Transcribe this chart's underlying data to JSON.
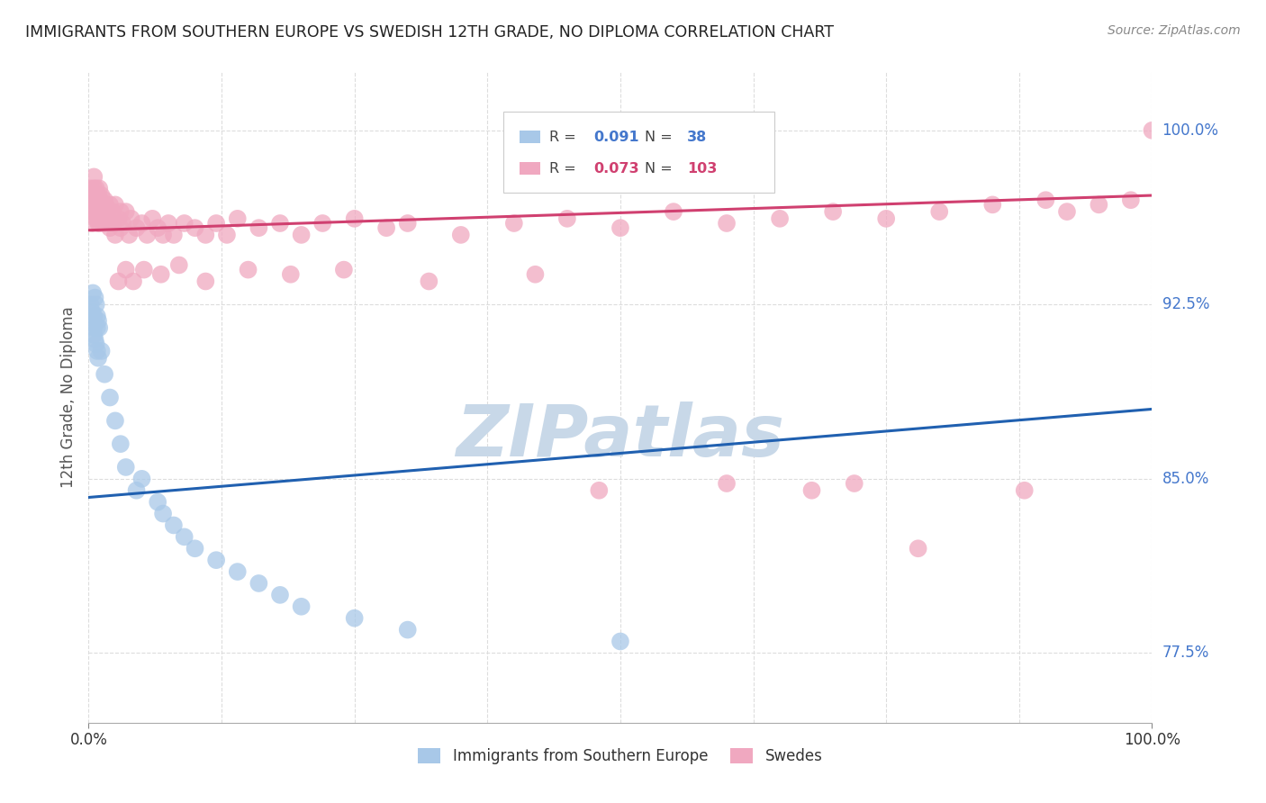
{
  "title": "IMMIGRANTS FROM SOUTHERN EUROPE VS SWEDISH 12TH GRADE, NO DIPLOMA CORRELATION CHART",
  "source": "Source: ZipAtlas.com",
  "ylabel": "12th Grade, No Diploma",
  "right_yticks": [
    77.5,
    85.0,
    92.5,
    100.0
  ],
  "right_ytick_labels": [
    "77.5%",
    "85.0%",
    "92.5%",
    "100.0%"
  ],
  "legend_blue_label": "Immigrants from Southern Europe",
  "legend_pink_label": "Swedes",
  "R_blue": "0.091",
  "N_blue": "38",
  "R_pink": "0.073",
  "N_pink": "103",
  "blue_color": "#a8c8e8",
  "pink_color": "#f0a8c0",
  "trend_blue_color": "#2060b0",
  "trend_pink_color": "#d04070",
  "blue_scatter_x": [
    0.2,
    0.3,
    0.3,
    0.4,
    0.5,
    0.5,
    0.5,
    0.6,
    0.6,
    0.7,
    0.7,
    0.8,
    0.8,
    0.8,
    0.9,
    0.9,
    1.0,
    1.2,
    1.5,
    2.0,
    2.5,
    3.0,
    3.5,
    4.5,
    5.0,
    6.5,
    7.0,
    8.0,
    9.0,
    10.0,
    12.0,
    14.0,
    16.0,
    18.0,
    20.0,
    25.0,
    30.0,
    50.0
  ],
  "blue_scatter_y": [
    92.5,
    91.8,
    92.2,
    93.0,
    91.5,
    92.0,
    91.2,
    92.8,
    91.0,
    90.8,
    92.5,
    91.5,
    90.5,
    92.0,
    91.8,
    90.2,
    91.5,
    90.5,
    89.5,
    88.5,
    87.5,
    86.5,
    85.5,
    84.5,
    85.0,
    84.0,
    83.5,
    83.0,
    82.5,
    82.0,
    81.5,
    81.0,
    80.5,
    80.0,
    79.5,
    79.0,
    78.5,
    78.0
  ],
  "pink_scatter_x": [
    0.2,
    0.2,
    0.3,
    0.3,
    0.4,
    0.4,
    0.5,
    0.5,
    0.5,
    0.5,
    0.5,
    0.6,
    0.6,
    0.6,
    0.7,
    0.7,
    0.7,
    0.8,
    0.8,
    0.9,
    0.9,
    1.0,
    1.0,
    1.0,
    1.1,
    1.1,
    1.2,
    1.2,
    1.3,
    1.4,
    1.5,
    1.5,
    1.6,
    1.7,
    1.8,
    2.0,
    2.0,
    2.2,
    2.3,
    2.5,
    2.5,
    2.8,
    3.0,
    3.0,
    3.2,
    3.5,
    3.8,
    4.0,
    4.5,
    5.0,
    5.5,
    6.0,
    6.5,
    7.0,
    7.5,
    8.0,
    9.0,
    10.0,
    11.0,
    12.0,
    13.0,
    14.0,
    16.0,
    18.0,
    20.0,
    22.0,
    25.0,
    28.0,
    30.0,
    35.0,
    40.0,
    45.0,
    50.0,
    55.0,
    60.0,
    65.0,
    70.0,
    75.0,
    80.0,
    85.0,
    90.0,
    92.0,
    95.0,
    98.0,
    100.0,
    2.8,
    3.5,
    4.2,
    5.2,
    6.8,
    8.5,
    11.0,
    15.0,
    19.0,
    24.0,
    32.0,
    42.0,
    48.0,
    60.0,
    68.0,
    72.0,
    78.0,
    88.0
  ],
  "pink_scatter_y": [
    97.5,
    96.8,
    97.0,
    96.5,
    97.2,
    96.0,
    97.0,
    96.5,
    97.5,
    98.0,
    96.8,
    97.2,
    96.5,
    97.0,
    96.8,
    97.5,
    96.2,
    97.0,
    96.5,
    97.2,
    96.0,
    97.5,
    96.8,
    96.0,
    97.0,
    96.5,
    97.2,
    96.8,
    96.5,
    96.0,
    97.0,
    96.5,
    96.8,
    96.2,
    96.5,
    96.8,
    95.8,
    96.5,
    96.0,
    96.8,
    95.5,
    96.2,
    96.5,
    95.8,
    96.0,
    96.5,
    95.5,
    96.2,
    95.8,
    96.0,
    95.5,
    96.2,
    95.8,
    95.5,
    96.0,
    95.5,
    96.0,
    95.8,
    95.5,
    96.0,
    95.5,
    96.2,
    95.8,
    96.0,
    95.5,
    96.0,
    96.2,
    95.8,
    96.0,
    95.5,
    96.0,
    96.2,
    95.8,
    96.5,
    96.0,
    96.2,
    96.5,
    96.2,
    96.5,
    96.8,
    97.0,
    96.5,
    96.8,
    97.0,
    100.0,
    93.5,
    94.0,
    93.5,
    94.0,
    93.8,
    94.2,
    93.5,
    94.0,
    93.8,
    94.0,
    93.5,
    93.8,
    84.5,
    84.8,
    84.5,
    84.8,
    82.0,
    84.5
  ],
  "xlim": [
    0,
    100
  ],
  "ylim": [
    74.5,
    102.5
  ],
  "trend_blue_x0": 0,
  "trend_blue_x1": 100,
  "trend_blue_y0": 84.2,
  "trend_blue_y1": 88.0,
  "trend_pink_x0": 0,
  "trend_pink_x1": 100,
  "trend_pink_y0": 95.7,
  "trend_pink_y1": 97.2,
  "grid_color": "#dddddd",
  "background_color": "#ffffff",
  "watermark": "ZIPatlas",
  "watermark_color": "#c8d8e8",
  "figsize": [
    14.06,
    8.92
  ],
  "dpi": 100,
  "legend_text_color": "#4477cc",
  "legend_pink_text_color": "#d04070"
}
